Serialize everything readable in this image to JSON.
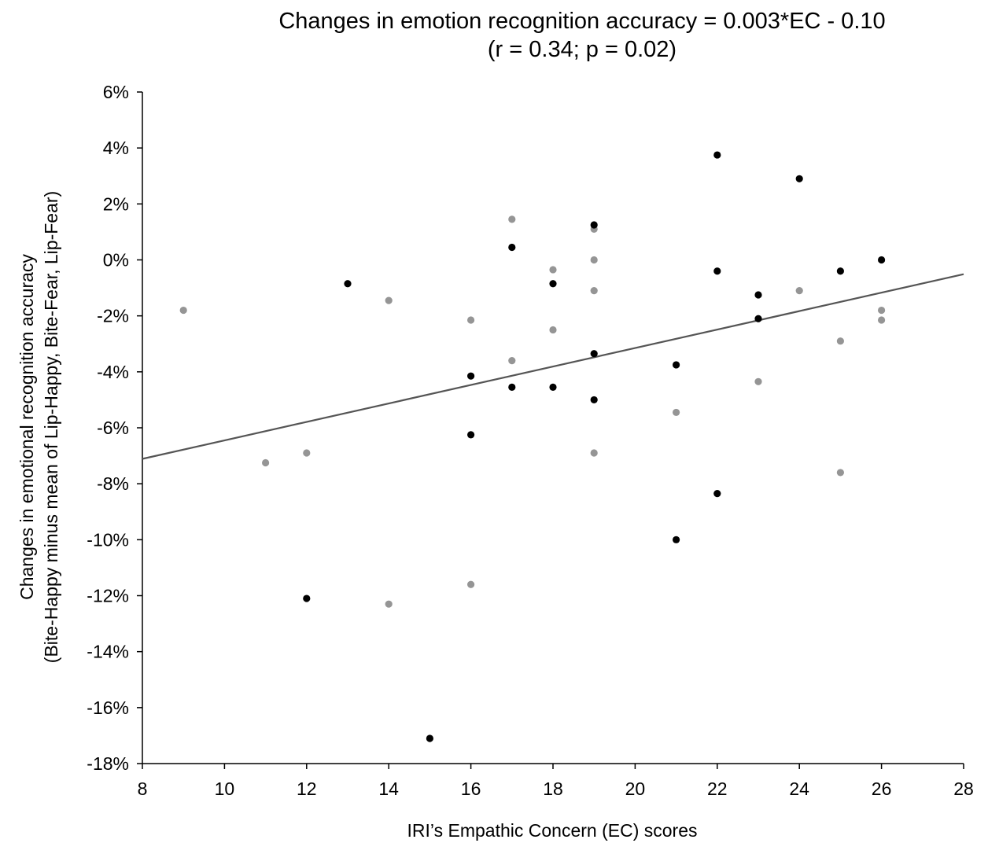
{
  "chart_data": {
    "type": "scatter",
    "title": "Changes in emotion recognition accuracy = 0.003*EC - 0.10",
    "subtitle": "(r = 0.34; p = 0.02)",
    "xlabel": "IRI’s Empathic Concern (EC) scores",
    "ylabel": "Changes in emotional recognition accuracy",
    "ylabel_line2": "(Bite-Happy minus mean of Lip-Happy, Bite-Fear, Lip-Fear)",
    "xlim": [
      8,
      28
    ],
    "ylim": [
      -18,
      6
    ],
    "x_ticks": [
      8,
      10,
      12,
      14,
      16,
      18,
      20,
      22,
      24,
      26,
      28
    ],
    "x_tick_labels": [
      "8",
      "10",
      "12",
      "14",
      "16",
      "18",
      "20",
      "22",
      "24",
      "26",
      "28"
    ],
    "y_ticks": [
      6,
      4,
      2,
      0,
      -2,
      -4,
      -6,
      -8,
      -10,
      -12,
      -14,
      -16,
      -18
    ],
    "y_tick_labels": [
      "6%",
      "4%",
      "2%",
      "0%",
      "-2%",
      "-4%",
      "-6%",
      "-8%",
      "-10%",
      "-12%",
      "-14%",
      "-16%",
      "-18%"
    ],
    "grid": false,
    "legend": "none",
    "series": [
      {
        "color": "#000000",
        "points": [
          [
            12,
            -12.1
          ],
          [
            13,
            -0.85
          ],
          [
            15,
            -17.1
          ],
          [
            16,
            -4.15
          ],
          [
            16,
            -6.25
          ],
          [
            17,
            0.45
          ],
          [
            17,
            -4.55
          ],
          [
            18,
            -0.85
          ],
          [
            18,
            -4.55
          ],
          [
            19,
            1.25
          ],
          [
            19,
            -3.35
          ],
          [
            19,
            -5.0
          ],
          [
            21,
            -3.75
          ],
          [
            21,
            -10.0
          ],
          [
            22,
            3.75
          ],
          [
            22,
            -0.4
          ],
          [
            22,
            -8.35
          ],
          [
            23,
            -1.25
          ],
          [
            23,
            -2.1
          ],
          [
            24,
            2.9
          ],
          [
            25,
            -0.4
          ],
          [
            26,
            0.0
          ]
        ]
      },
      {
        "color": "#959595",
        "points": [
          [
            9,
            -1.8
          ],
          [
            11,
            -7.25
          ],
          [
            12,
            -6.9
          ],
          [
            14,
            -1.45
          ],
          [
            14,
            -12.3
          ],
          [
            16,
            -2.15
          ],
          [
            16,
            -11.6
          ],
          [
            17,
            1.45
          ],
          [
            17,
            -3.6
          ],
          [
            18,
            -0.35
          ],
          [
            18,
            -2.5
          ],
          [
            19,
            1.1
          ],
          [
            19,
            0.0
          ],
          [
            19,
            -1.1
          ],
          [
            19,
            -6.9
          ],
          [
            21,
            -5.45
          ],
          [
            23,
            -4.35
          ],
          [
            24,
            -1.1
          ],
          [
            25,
            -2.9
          ],
          [
            25,
            -7.6
          ],
          [
            26,
            -1.8
          ],
          [
            26,
            -2.15
          ]
        ]
      }
    ],
    "trendline": {
      "slope": 0.33,
      "intercept": -9.75,
      "x_range": [
        8,
        28
      ],
      "color": "#555555"
    }
  }
}
